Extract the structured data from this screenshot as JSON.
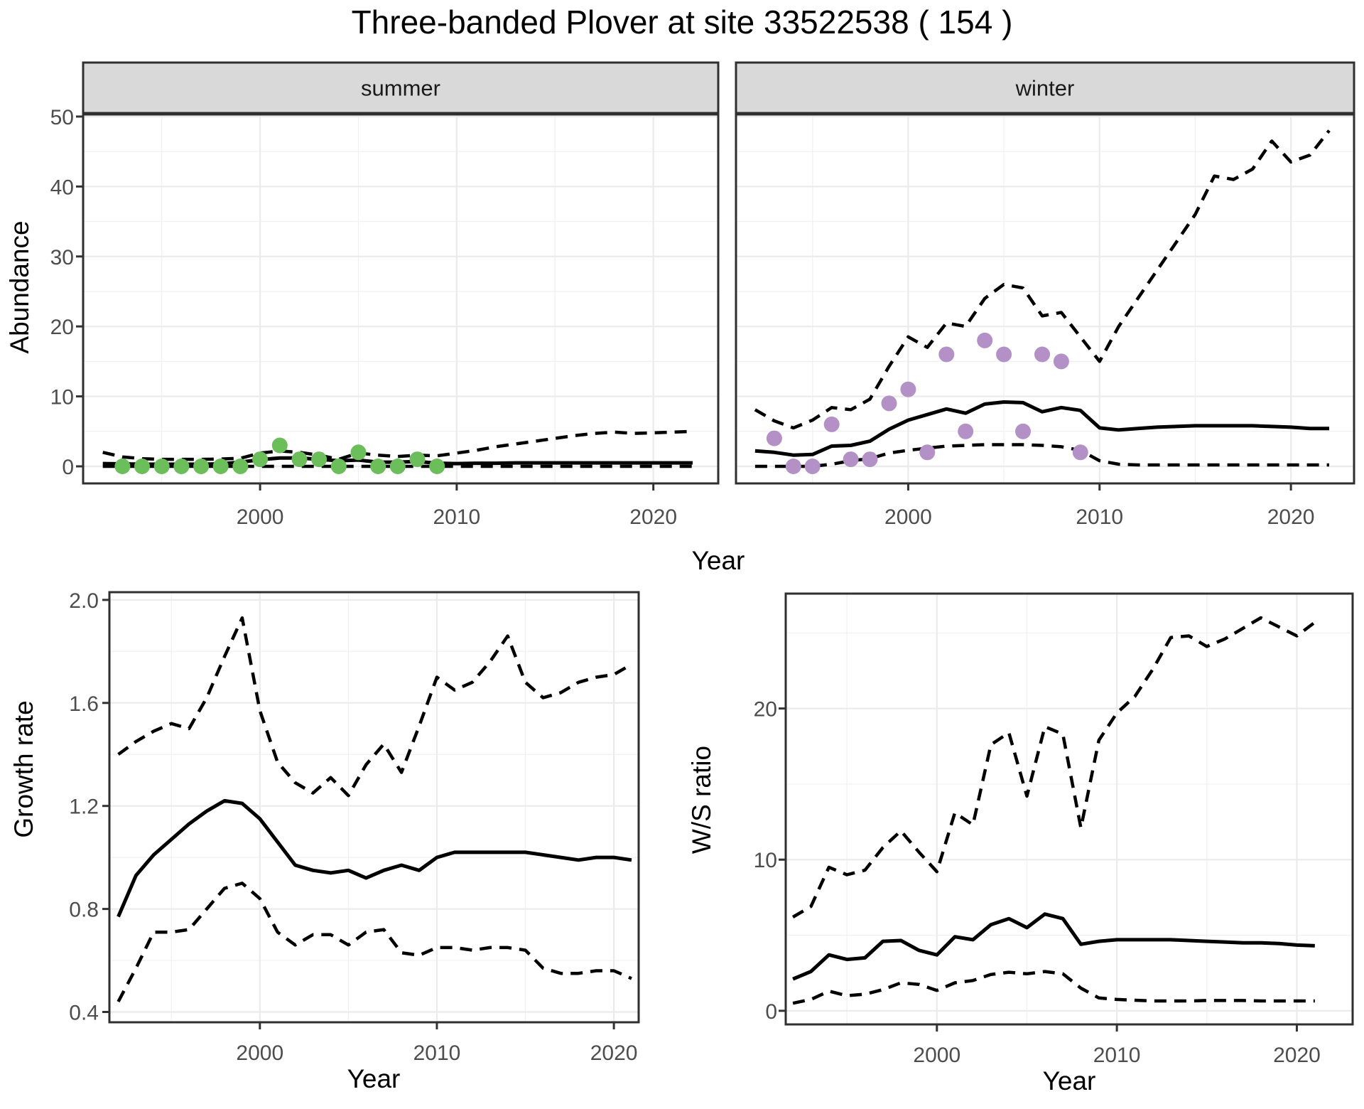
{
  "title": "Three-banded Plover at site 33522538 ( 154 )",
  "theme": {
    "background": "#ffffff",
    "strip_bg": "#d9d9d9",
    "grid_major": "#ebebeb",
    "grid_minor": "#f0f0f0",
    "panel_border": "#2f2f2f",
    "tick_color": "#333333",
    "tick_label_color": "#4d4d4d",
    "strip_text_color": "#1a1a1a",
    "line_color": "#000000",
    "summer_point": "#6cbe5b",
    "winter_point": "#b390c6"
  },
  "chart_data": [
    {
      "id": "abundance-summer",
      "type": "line",
      "facet_label": "summer",
      "xlabel": "Year",
      "ylabel": "Abundance",
      "x_ticks": [
        2000,
        2010,
        2020
      ],
      "y_ticks": [
        0,
        10,
        20,
        30,
        40,
        50
      ],
      "xlim": [
        1991,
        2023.3
      ],
      "ylim": [
        -2.44,
        50.3
      ],
      "x": [
        1992,
        1993,
        1994,
        1995,
        1996,
        1997,
        1998,
        1999,
        2000,
        2001,
        2002,
        2003,
        2004,
        2005,
        2006,
        2007,
        2008,
        2009,
        2010,
        2011,
        2012,
        2013,
        2014,
        2015,
        2016,
        2017,
        2018,
        2019,
        2020,
        2021,
        2022
      ],
      "series": [
        {
          "name": "upper-95ci",
          "style": "dashed",
          "values": [
            2,
            1.35,
            1.1,
            1,
            1,
            1,
            1.05,
            1.15,
            1.9,
            2.2,
            2,
            1.6,
            1,
            1.9,
            1.6,
            1.4,
            1.6,
            1.5,
            1.9,
            2.3,
            2.8,
            3.2,
            3.6,
            4,
            4.4,
            4.7,
            4.9,
            4.7,
            4.8,
            4.9,
            5
          ]
        },
        {
          "name": "median",
          "style": "solid",
          "values": [
            0.4,
            0.35,
            0.3,
            0.3,
            0.3,
            0.3,
            0.35,
            0.6,
            0.95,
            1.2,
            1.2,
            1,
            0.8,
            0.9,
            0.6,
            0.6,
            0.7,
            0.45,
            0.4,
            0.45,
            0.45,
            0.5,
            0.5,
            0.5,
            0.5,
            0.5,
            0.5,
            0.5,
            0.5,
            0.5,
            0.5
          ]
        },
        {
          "name": "lower-95ci",
          "style": "dashed",
          "values": [
            0,
            0,
            0,
            0,
            0,
            0,
            0,
            0,
            0,
            0,
            0,
            0,
            0,
            0,
            0,
            0,
            0,
            0,
            0,
            0,
            0,
            0,
            0,
            0,
            0,
            0,
            0,
            0,
            0,
            0,
            0
          ]
        }
      ],
      "observations": {
        "name": "observed-abundance-summer",
        "color_key": "summer_point",
        "x": [
          1993,
          1994,
          1995,
          1996,
          1997,
          1998,
          1999,
          2000,
          2001,
          2002,
          2003,
          2004,
          2005,
          2006,
          2007,
          2008,
          2009
        ],
        "y": [
          0,
          0,
          0,
          0,
          0,
          0,
          0,
          1,
          3,
          1,
          1,
          0,
          2,
          0,
          0,
          1,
          0
        ]
      }
    },
    {
      "id": "abundance-winter",
      "type": "line",
      "facet_label": "winter",
      "xlabel": "",
      "ylabel": "",
      "x_ticks": [
        2000,
        2010,
        2020
      ],
      "y_ticks": [
        0,
        10,
        20,
        30,
        40,
        50
      ],
      "xlim": [
        1991,
        2023.3
      ],
      "ylim": [
        -2.44,
        50.3
      ],
      "x": [
        1992,
        1993,
        1994,
        1995,
        1996,
        1997,
        1998,
        1999,
        2000,
        2001,
        2002,
        2003,
        2004,
        2005,
        2006,
        2007,
        2008,
        2009,
        2010,
        2011,
        2012,
        2013,
        2014,
        2015,
        2016,
        2017,
        2018,
        2019,
        2020,
        2021,
        2022
      ],
      "series": [
        {
          "name": "upper-95ci",
          "style": "dashed",
          "values": [
            8.1,
            6.5,
            5.5,
            6.6,
            8.4,
            8.1,
            9.6,
            14.3,
            18.5,
            17,
            20.5,
            20,
            24,
            26,
            25.5,
            21.5,
            22,
            18.5,
            15,
            20,
            24,
            28,
            32,
            36,
            41.5,
            41,
            42.5,
            46.5,
            43.5,
            44.5,
            48
          ]
        },
        {
          "name": "median",
          "style": "solid",
          "values": [
            2.2,
            2,
            1.6,
            1.7,
            2.9,
            3,
            3.6,
            5.3,
            6.6,
            7.4,
            8.2,
            7.6,
            8.9,
            9.2,
            9.1,
            7.8,
            8.4,
            8,
            5.5,
            5.2,
            5.4,
            5.6,
            5.7,
            5.8,
            5.8,
            5.8,
            5.8,
            5.7,
            5.6,
            5.4,
            5.4
          ]
        },
        {
          "name": "lower-95ci",
          "style": "dashed",
          "values": [
            0,
            0,
            0,
            0,
            0.3,
            0.8,
            1.1,
            1.9,
            2.3,
            2.6,
            2.9,
            3,
            3.1,
            3.1,
            3.1,
            3,
            2.8,
            2.3,
            0.8,
            0.3,
            0.2,
            0.2,
            0.2,
            0.2,
            0.2,
            0.2,
            0.2,
            0.2,
            0.2,
            0.2,
            0.2
          ]
        }
      ],
      "observations": {
        "name": "observed-abundance-winter",
        "color_key": "winter_point",
        "x": [
          1993,
          1994,
          1995,
          1996,
          1997,
          1998,
          1999,
          2000,
          2001,
          2002,
          2003,
          2004,
          2005,
          2006,
          2007,
          2008,
          2009
        ],
        "y": [
          4,
          0,
          0,
          6,
          1,
          1,
          9,
          11,
          2,
          16,
          5,
          18,
          16,
          5,
          16,
          15,
          2
        ]
      }
    },
    {
      "id": "growth-rate",
      "type": "line",
      "facet_label": "",
      "xlabel": "Year",
      "ylabel": "Growth rate",
      "x_ticks": [
        2000,
        2010,
        2020
      ],
      "y_ticks": [
        0.4,
        0.8,
        1.2,
        1.6,
        2.0
      ],
      "y_tick_labels": [
        "0.4",
        "0.8",
        "1.2",
        "1.6",
        "2.0"
      ],
      "xlim": [
        1991.5,
        2021.4
      ],
      "ylim": [
        0.36,
        2.03
      ],
      "x": [
        1992,
        1993,
        1994,
        1995,
        1996,
        1997,
        1998,
        1999,
        2000,
        2001,
        2002,
        2003,
        2004,
        2005,
        2006,
        2007,
        2008,
        2009,
        2010,
        2011,
        2012,
        2013,
        2014,
        2015,
        2016,
        2017,
        2018,
        2019,
        2020,
        2021
      ],
      "series": [
        {
          "name": "upper-95ci",
          "style": "dashed",
          "values": [
            1.4,
            1.45,
            1.49,
            1.52,
            1.5,
            1.62,
            1.78,
            1.93,
            1.57,
            1.37,
            1.29,
            1.25,
            1.31,
            1.24,
            1.36,
            1.44,
            1.33,
            1.51,
            1.7,
            1.65,
            1.68,
            1.76,
            1.86,
            1.68,
            1.62,
            1.64,
            1.68,
            1.7,
            1.71,
            1.75
          ]
        },
        {
          "name": "median",
          "style": "solid",
          "values": [
            0.77,
            0.93,
            1.01,
            1.07,
            1.13,
            1.18,
            1.22,
            1.21,
            1.15,
            1.06,
            0.97,
            0.95,
            0.94,
            0.95,
            0.92,
            0.95,
            0.97,
            0.95,
            1,
            1.02,
            1.02,
            1.02,
            1.02,
            1.02,
            1.01,
            1,
            0.99,
            1,
            1,
            0.99
          ]
        },
        {
          "name": "lower-95ci",
          "style": "dashed",
          "values": [
            0.44,
            0.57,
            0.71,
            0.71,
            0.72,
            0.8,
            0.88,
            0.9,
            0.84,
            0.71,
            0.66,
            0.7,
            0.7,
            0.66,
            0.71,
            0.72,
            0.63,
            0.62,
            0.65,
            0.65,
            0.64,
            0.65,
            0.65,
            0.64,
            0.57,
            0.55,
            0.55,
            0.56,
            0.56,
            0.53
          ]
        }
      ]
    },
    {
      "id": "ws-ratio",
      "type": "line",
      "facet_label": "",
      "xlabel": "Year",
      "ylabel": "W/S ratio",
      "x_ticks": [
        2000,
        2010,
        2020
      ],
      "y_ticks": [
        0,
        10,
        20
      ],
      "xlim": [
        1991.6,
        2023.1
      ],
      "ylim": [
        -0.9,
        27.6
      ],
      "x": [
        1992,
        1993,
        1994,
        1995,
        1996,
        1997,
        1998,
        1999,
        2000,
        2001,
        2002,
        2003,
        2004,
        2005,
        2006,
        2007,
        2008,
        2009,
        2010,
        2011,
        2012,
        2013,
        2014,
        2015,
        2016,
        2017,
        2018,
        2019,
        2020,
        2021
      ],
      "series": [
        {
          "name": "upper-95ci",
          "style": "dashed",
          "values": [
            6.2,
            6.9,
            9.5,
            9,
            9.3,
            10.8,
            11.9,
            10.5,
            9.2,
            13.1,
            12.3,
            17.6,
            18.4,
            14.2,
            18.8,
            18.3,
            12.1,
            17.9,
            19.7,
            20.8,
            22.6,
            24.7,
            24.8,
            24.1,
            24.6,
            25.3,
            26,
            25.4,
            24.8,
            25.7
          ]
        },
        {
          "name": "median",
          "style": "solid",
          "values": [
            2.1,
            2.6,
            3.7,
            3.4,
            3.5,
            4.6,
            4.65,
            4,
            3.7,
            4.9,
            4.7,
            5.7,
            6.1,
            5.5,
            6.4,
            6.1,
            4.4,
            4.6,
            4.7,
            4.7,
            4.7,
            4.7,
            4.65,
            4.6,
            4.55,
            4.5,
            4.5,
            4.45,
            4.35,
            4.3
          ]
        },
        {
          "name": "lower-95ci",
          "style": "dashed",
          "values": [
            0.5,
            0.75,
            1.3,
            1,
            1.1,
            1.4,
            1.85,
            1.75,
            1.35,
            1.85,
            2,
            2.4,
            2.55,
            2.45,
            2.6,
            2.45,
            1.5,
            0.85,
            0.75,
            0.7,
            0.65,
            0.65,
            0.65,
            0.68,
            0.68,
            0.68,
            0.65,
            0.65,
            0.65,
            0.65
          ]
        }
      ]
    }
  ]
}
